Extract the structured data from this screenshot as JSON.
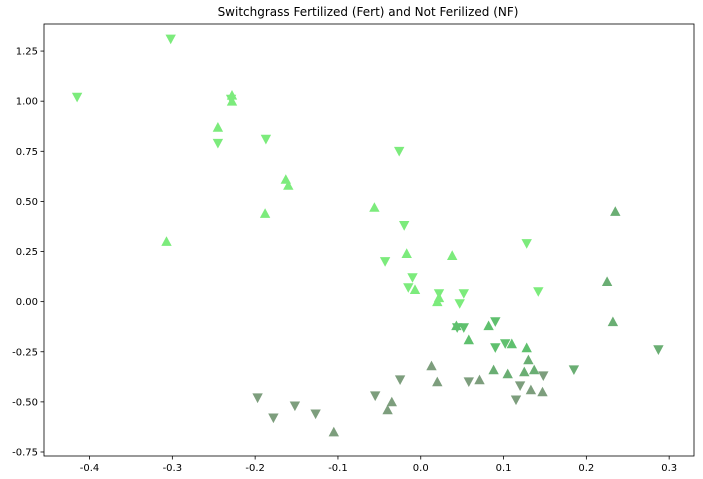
{
  "chart_data": {
    "type": "scatter",
    "title": "Switchgrass Fertilized (Fert) and Not Ferilized (NF)",
    "xlabel": "",
    "ylabel": "",
    "xlim": [
      -0.455,
      0.33
    ],
    "ylim": [
      -0.77,
      1.385
    ],
    "grid": false,
    "xticks": [
      -0.4,
      -0.3,
      -0.2,
      -0.1,
      0.0,
      0.1,
      0.2,
      0.3
    ],
    "xtick_labels": [
      "-0.4",
      "-0.3",
      "-0.2",
      "-0.1",
      "0.0",
      "0.1",
      "0.2",
      "0.3"
    ],
    "yticks": [
      -0.75,
      -0.5,
      -0.25,
      0.0,
      0.25,
      0.5,
      0.75,
      1.0,
      1.25
    ],
    "ytick_labels": [
      "-0.75",
      "-0.50",
      "-0.25",
      "0.00",
      "0.25",
      "0.50",
      "0.75",
      "1.00",
      "1.25"
    ],
    "series": [
      {
        "marker": "triangle-up",
        "color": "#7ceb7c",
        "points": [
          [
            -0.228,
            1.03
          ],
          [
            -0.228,
            1.0
          ],
          [
            -0.245,
            0.87
          ],
          [
            -0.163,
            0.61
          ],
          [
            -0.16,
            0.58
          ],
          [
            -0.188,
            0.44
          ],
          [
            -0.307,
            0.3
          ],
          [
            -0.056,
            0.47
          ],
          [
            0.038,
            0.23
          ],
          [
            -0.017,
            0.24
          ],
          [
            -0.007,
            0.06
          ],
          [
            0.022,
            0.02
          ],
          [
            0.02,
            0.0
          ]
        ]
      },
      {
        "marker": "triangle-down",
        "color": "#7ceb7c",
        "points": [
          [
            -0.415,
            1.02
          ],
          [
            -0.302,
            1.31
          ],
          [
            -0.229,
            1.01
          ],
          [
            -0.245,
            0.79
          ],
          [
            -0.187,
            0.81
          ],
          [
            -0.026,
            0.75
          ],
          [
            -0.02,
            0.38
          ],
          [
            -0.043,
            0.2
          ],
          [
            -0.01,
            0.12
          ],
          [
            -0.015,
            0.07
          ],
          [
            0.022,
            0.04
          ],
          [
            0.052,
            0.04
          ],
          [
            0.047,
            -0.01
          ],
          [
            0.128,
            0.29
          ],
          [
            0.142,
            0.05
          ]
        ]
      },
      {
        "marker": "triangle-up",
        "color": "#5fc06e",
        "points": [
          [
            0.058,
            -0.19
          ],
          [
            0.043,
            -0.12
          ],
          [
            0.082,
            -0.12
          ],
          [
            0.11,
            -0.21
          ],
          [
            0.128,
            -0.23
          ]
        ]
      },
      {
        "marker": "triangle-down",
        "color": "#5fc06e",
        "points": [
          [
            0.044,
            -0.13
          ],
          [
            0.052,
            -0.13
          ],
          [
            0.09,
            -0.1
          ],
          [
            0.09,
            -0.23
          ],
          [
            0.102,
            -0.21
          ]
        ]
      },
      {
        "marker": "triangle-up",
        "color": "#6aae73",
        "points": [
          [
            0.225,
            0.1
          ],
          [
            0.235,
            0.45
          ],
          [
            0.232,
            -0.1
          ],
          [
            0.13,
            -0.29
          ],
          [
            0.125,
            -0.35
          ],
          [
            0.137,
            -0.34
          ],
          [
            0.105,
            -0.36
          ],
          [
            0.088,
            -0.34
          ]
        ]
      },
      {
        "marker": "triangle-down",
        "color": "#6aae73",
        "points": [
          [
            0.287,
            -0.24
          ],
          [
            0.185,
            -0.34
          ]
        ]
      },
      {
        "marker": "triangle-up",
        "color": "#7d9e7d",
        "points": [
          [
            0.071,
            -0.39
          ],
          [
            0.02,
            -0.4
          ],
          [
            0.013,
            -0.32
          ],
          [
            -0.035,
            -0.5
          ],
          [
            -0.04,
            -0.54
          ],
          [
            -0.105,
            -0.65
          ],
          [
            0.133,
            -0.44
          ],
          [
            0.147,
            -0.45
          ]
        ]
      },
      {
        "marker": "triangle-down",
        "color": "#7d9e7d",
        "points": [
          [
            -0.197,
            -0.48
          ],
          [
            -0.178,
            -0.58
          ],
          [
            -0.152,
            -0.52
          ],
          [
            -0.127,
            -0.56
          ],
          [
            -0.055,
            -0.47
          ],
          [
            -0.025,
            -0.39
          ],
          [
            0.058,
            -0.4
          ],
          [
            0.12,
            -0.42
          ],
          [
            0.115,
            -0.49
          ],
          [
            0.148,
            -0.37
          ]
        ]
      }
    ]
  }
}
